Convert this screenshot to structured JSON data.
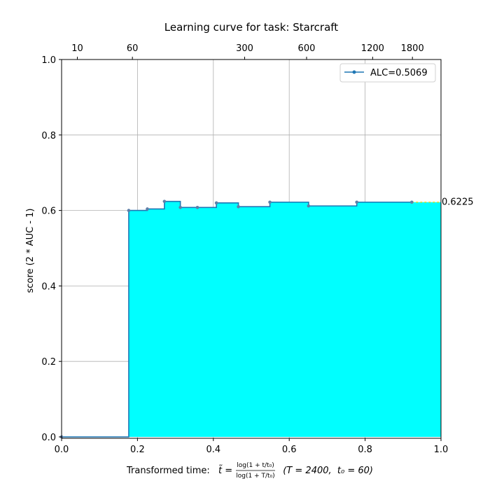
{
  "chart_data": {
    "type": "line",
    "title": "Learning curve for task: Starcraft",
    "ylabel": "score (2 * AUC - 1)",
    "xlabel_prefix": "Transformed time: ",
    "xlabel_suffix": "  (T = 2400,  t₀ = 60)",
    "xlabel_formula": {
      "symbol": "t̃ =",
      "numerator": "log(1 + t/t₀)",
      "denominator": "log(1 + T/t₀)"
    },
    "xlim": [
      0.0,
      1.0
    ],
    "ylim": [
      -0.01,
      1.0
    ],
    "x_ticks": [
      "0.0",
      "0.2",
      "0.4",
      "0.6",
      "0.8",
      "1.0"
    ],
    "y_ticks": [
      "0.0",
      "0.2",
      "0.4",
      "0.6",
      "0.8",
      "1.0"
    ],
    "top_ticks": [
      "10",
      "60",
      "300",
      "600",
      "1200",
      "1800"
    ],
    "grid": true,
    "legend": {
      "label": "ALC=0.5069",
      "placement": "top-right"
    },
    "series": [
      {
        "name": "ALC=0.5069",
        "step": "post",
        "x": [
          0.0,
          0.177,
          0.226,
          0.271,
          0.313,
          0.358,
          0.408,
          0.466,
          0.549,
          0.651,
          0.778,
          0.923,
          1.0
        ],
        "y": [
          0.0,
          0.6,
          0.604,
          0.624,
          0.608,
          0.608,
          0.62,
          0.61,
          0.622,
          0.612,
          0.622,
          0.622,
          0.622
        ]
      }
    ],
    "final_value_label": "0.6225",
    "colors": {
      "line": "#1f77b4",
      "fill": "#00ffff",
      "grid": "#b0b0b0",
      "extension": "#ffd700"
    }
  }
}
